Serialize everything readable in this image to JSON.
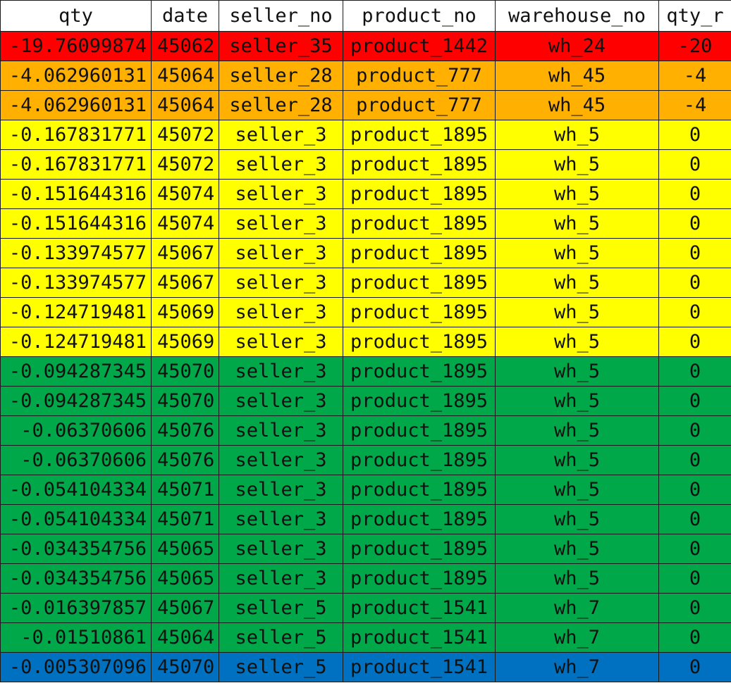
{
  "colors": {
    "red": "#ff0000",
    "orange": "#ffb000",
    "yellow": "#ffff00",
    "green": "#00a84a",
    "blue": "#0070c0",
    "header": "#ffffff"
  },
  "table": {
    "headers": [
      "qty",
      "date",
      "seller_no",
      "product_no",
      "warehouse_no",
      "qty_r"
    ],
    "rows": [
      {
        "color": "red",
        "qty": "-19.76099874",
        "date": "45062",
        "seller_no": "seller_35",
        "product_no": "product_1442",
        "warehouse_no": "wh_24",
        "qty_r": "-20"
      },
      {
        "color": "orange",
        "qty": "-4.062960131",
        "date": "45064",
        "seller_no": "seller_28",
        "product_no": "product_777",
        "warehouse_no": "wh_45",
        "qty_r": "-4"
      },
      {
        "color": "orange",
        "qty": "-4.062960131",
        "date": "45064",
        "seller_no": "seller_28",
        "product_no": "product_777",
        "warehouse_no": "wh_45",
        "qty_r": "-4"
      },
      {
        "color": "yellow",
        "qty": "-0.167831771",
        "date": "45072",
        "seller_no": "seller_3",
        "product_no": "product_1895",
        "warehouse_no": "wh_5",
        "qty_r": "0"
      },
      {
        "color": "yellow",
        "qty": "-0.167831771",
        "date": "45072",
        "seller_no": "seller_3",
        "product_no": "product_1895",
        "warehouse_no": "wh_5",
        "qty_r": "0"
      },
      {
        "color": "yellow",
        "qty": "-0.151644316",
        "date": "45074",
        "seller_no": "seller_3",
        "product_no": "product_1895",
        "warehouse_no": "wh_5",
        "qty_r": "0"
      },
      {
        "color": "yellow",
        "qty": "-0.151644316",
        "date": "45074",
        "seller_no": "seller_3",
        "product_no": "product_1895",
        "warehouse_no": "wh_5",
        "qty_r": "0"
      },
      {
        "color": "yellow",
        "qty": "-0.133974577",
        "date": "45067",
        "seller_no": "seller_3",
        "product_no": "product_1895",
        "warehouse_no": "wh_5",
        "qty_r": "0"
      },
      {
        "color": "yellow",
        "qty": "-0.133974577",
        "date": "45067",
        "seller_no": "seller_3",
        "product_no": "product_1895",
        "warehouse_no": "wh_5",
        "qty_r": "0"
      },
      {
        "color": "yellow",
        "qty": "-0.124719481",
        "date": "45069",
        "seller_no": "seller_3",
        "product_no": "product_1895",
        "warehouse_no": "wh_5",
        "qty_r": "0"
      },
      {
        "color": "yellow",
        "qty": "-0.124719481",
        "date": "45069",
        "seller_no": "seller_3",
        "product_no": "product_1895",
        "warehouse_no": "wh_5",
        "qty_r": "0"
      },
      {
        "color": "green",
        "qty": "-0.094287345",
        "date": "45070",
        "seller_no": "seller_3",
        "product_no": "product_1895",
        "warehouse_no": "wh_5",
        "qty_r": "0"
      },
      {
        "color": "green",
        "qty": "-0.094287345",
        "date": "45070",
        "seller_no": "seller_3",
        "product_no": "product_1895",
        "warehouse_no": "wh_5",
        "qty_r": "0"
      },
      {
        "color": "green",
        "qty": "-0.06370606",
        "date": "45076",
        "seller_no": "seller_3",
        "product_no": "product_1895",
        "warehouse_no": "wh_5",
        "qty_r": "0"
      },
      {
        "color": "green",
        "qty": "-0.06370606",
        "date": "45076",
        "seller_no": "seller_3",
        "product_no": "product_1895",
        "warehouse_no": "wh_5",
        "qty_r": "0"
      },
      {
        "color": "green",
        "qty": "-0.054104334",
        "date": "45071",
        "seller_no": "seller_3",
        "product_no": "product_1895",
        "warehouse_no": "wh_5",
        "qty_r": "0"
      },
      {
        "color": "green",
        "qty": "-0.054104334",
        "date": "45071",
        "seller_no": "seller_3",
        "product_no": "product_1895",
        "warehouse_no": "wh_5",
        "qty_r": "0"
      },
      {
        "color": "green",
        "qty": "-0.034354756",
        "date": "45065",
        "seller_no": "seller_3",
        "product_no": "product_1895",
        "warehouse_no": "wh_5",
        "qty_r": "0"
      },
      {
        "color": "green",
        "qty": "-0.034354756",
        "date": "45065",
        "seller_no": "seller_3",
        "product_no": "product_1895",
        "warehouse_no": "wh_5",
        "qty_r": "0"
      },
      {
        "color": "green",
        "qty": "-0.016397857",
        "date": "45067",
        "seller_no": "seller_5",
        "product_no": "product_1541",
        "warehouse_no": "wh_7",
        "qty_r": "0"
      },
      {
        "color": "green",
        "qty": "-0.01510861",
        "date": "45064",
        "seller_no": "seller_5",
        "product_no": "product_1541",
        "warehouse_no": "wh_7",
        "qty_r": "0"
      },
      {
        "color": "blue",
        "qty": "-0.005307096",
        "date": "45070",
        "seller_no": "seller_5",
        "product_no": "product_1541",
        "warehouse_no": "wh_7",
        "qty_r": "0"
      }
    ]
  }
}
